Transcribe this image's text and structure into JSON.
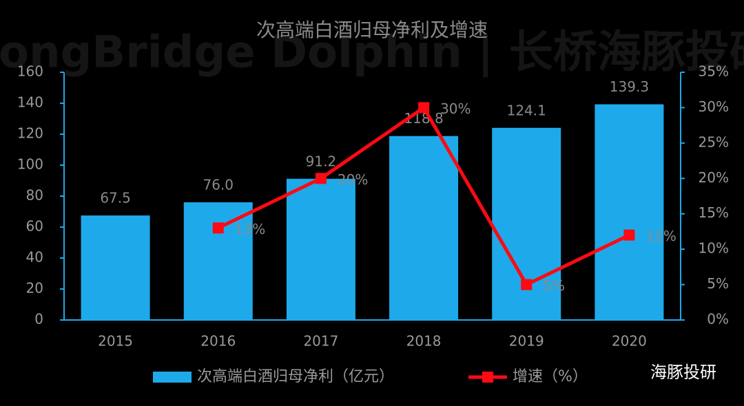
{
  "chart_data": {
    "type": "bar-line",
    "title": "次高端白酒归母净利及增速",
    "watermark": "LongBridge Dolphin | 长桥海豚投研",
    "badge": "海豚投研",
    "categories": [
      "2015",
      "2016",
      "2017",
      "2018",
      "2019",
      "2020"
    ],
    "series": [
      {
        "name": "次高端白酒归母净利（亿元）",
        "type": "bar",
        "color": "#1eaaea",
        "values": [
          67.5,
          76.0,
          91.2,
          118.8,
          124.1,
          139.3
        ],
        "value_labels": [
          "67.5",
          "76.0",
          "91.2",
          "118.8",
          "124.1",
          "139.3"
        ]
      },
      {
        "name": "增速（%）",
        "type": "line",
        "axis": "y2",
        "color": "#ff0a14",
        "values": [
          null,
          13,
          20,
          30,
          5,
          12
        ],
        "value_labels": [
          null,
          "13%",
          "20%",
          "30%",
          "5%",
          "12%"
        ]
      }
    ],
    "ylim": [
      0,
      160
    ],
    "yticks": [
      0,
      20,
      40,
      60,
      80,
      100,
      120,
      140,
      160
    ],
    "y2lim": [
      0,
      35
    ],
    "y2ticks": [
      {
        "value": 0,
        "label": "0%"
      },
      {
        "value": 5,
        "label": "5%"
      },
      {
        "value": 10,
        "label": "10%"
      },
      {
        "value": 15,
        "label": "15%"
      },
      {
        "value": 20,
        "label": "20%"
      },
      {
        "value": 25,
        "label": "25%"
      },
      {
        "value": 30,
        "label": "30%"
      },
      {
        "value": 35,
        "label": "35%"
      }
    ],
    "legend": "bottom"
  }
}
